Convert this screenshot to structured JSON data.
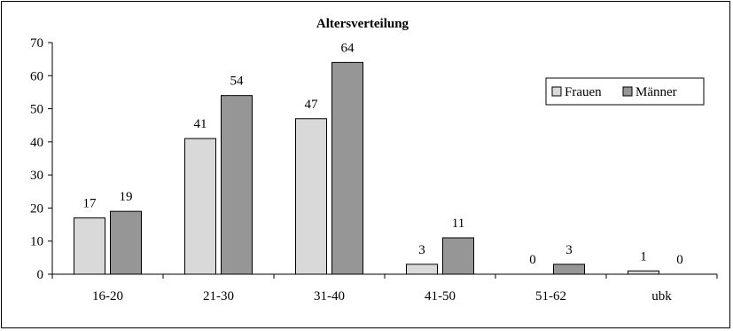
{
  "chart_data": {
    "type": "bar",
    "title": "Altersverteilung",
    "xlabel": "",
    "ylabel": "",
    "categories": [
      "16-20",
      "21-30",
      "31-40",
      "41-50",
      "51-62",
      "ubk"
    ],
    "series": [
      {
        "name": "Frauen",
        "values": [
          17,
          41,
          47,
          3,
          0,
          1
        ],
        "color": "#d9d9d9"
      },
      {
        "name": "Männer",
        "values": [
          19,
          54,
          64,
          11,
          3,
          0
        ],
        "color": "#969696"
      }
    ],
    "ylim": [
      0,
      70
    ],
    "yticks": [
      0,
      10,
      20,
      30,
      40,
      50,
      60,
      70
    ],
    "grid": false,
    "legend_position": "top-right",
    "show_data_labels": true
  }
}
